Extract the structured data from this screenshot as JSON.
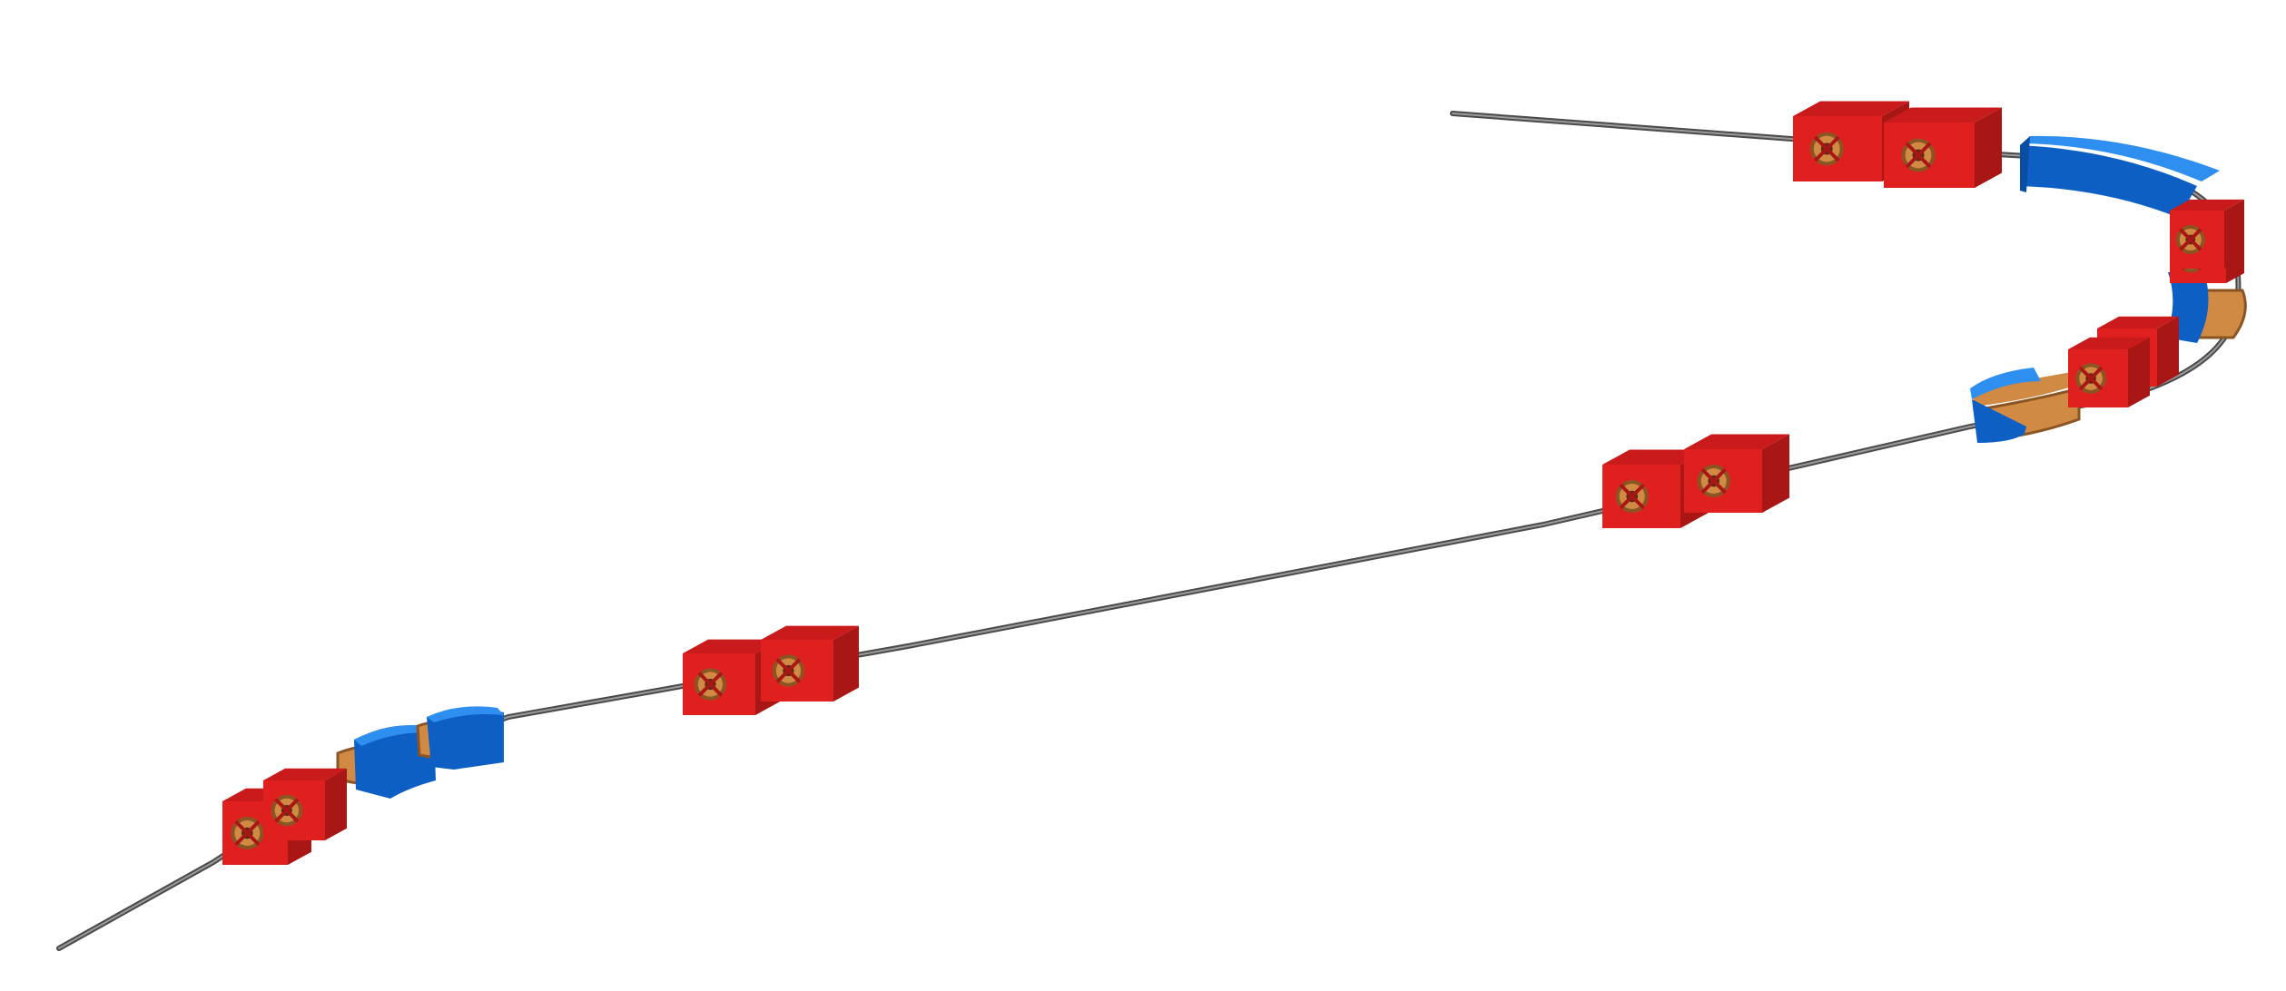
{
  "diagram": {
    "type": "3d-beamline-render",
    "colors": {
      "background": "#ffffff",
      "beam_pipe": "#6b6b6b",
      "quadrupole_front": "#e0201f",
      "quadrupole_side": "#a81616",
      "quadrupole_top": "#c91b1b",
      "dipole_top": "#2f8ff0",
      "dipole_side": "#0d5fc4",
      "dipole_dark": "#0a4ea3",
      "coil": "#d08a44",
      "coil_dark": "#8a5522"
    },
    "components": [
      {
        "kind": "quadrupole",
        "id": "q1"
      },
      {
        "kind": "quadrupole",
        "id": "q2"
      },
      {
        "kind": "dipole",
        "id": "d1"
      },
      {
        "kind": "dipole",
        "id": "d2"
      },
      {
        "kind": "quadrupole",
        "id": "q3"
      },
      {
        "kind": "quadrupole",
        "id": "q4"
      },
      {
        "kind": "quadrupole",
        "id": "q5"
      },
      {
        "kind": "quadrupole",
        "id": "q6"
      },
      {
        "kind": "dipole",
        "id": "d3"
      },
      {
        "kind": "quadrupole",
        "id": "q7"
      },
      {
        "kind": "quadrupole",
        "id": "q8"
      },
      {
        "kind": "dipole",
        "id": "d4"
      },
      {
        "kind": "quadrupole",
        "id": "q9"
      },
      {
        "kind": "dipole",
        "id": "d5"
      },
      {
        "kind": "quadrupole",
        "id": "q10"
      },
      {
        "kind": "quadrupole",
        "id": "q11"
      },
      {
        "kind": "quadrupole",
        "id": "q12"
      }
    ]
  }
}
